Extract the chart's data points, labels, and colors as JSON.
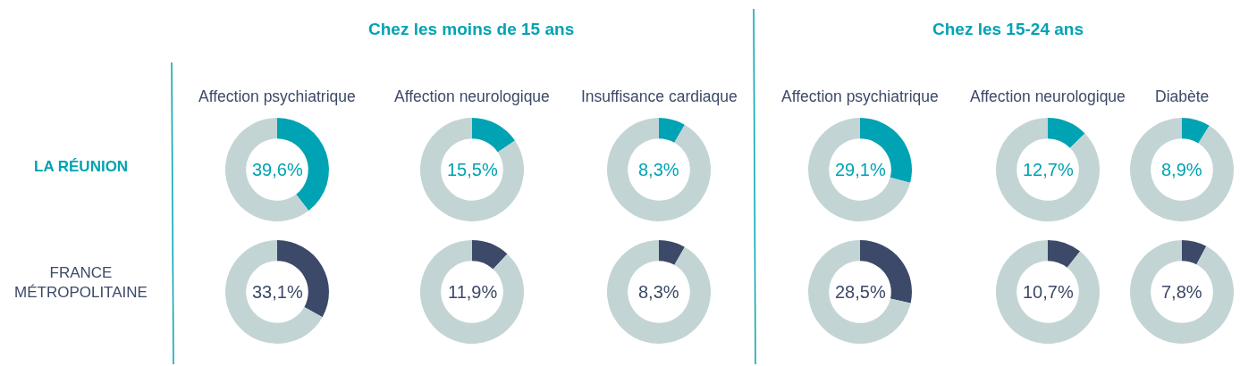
{
  "chart_data": [
    {
      "type": "other",
      "annotations": [
        "Chez les moins de 15 ans",
        "Chez les 15-24 ans",
        "LA RÉUNION",
        "FRANCE MÉTROPOLITAINE"
      ]
    },
    {
      "type": "donut",
      "title": "Affection psychiatrique",
      "categories": [
        null,
        null
      ],
      "values": [
        39.6,
        60.4
      ],
      "colors": [
        "#00a3b3",
        "#c3d4d4"
      ],
      "annotations": [
        "39,6%"
      ]
    },
    {
      "type": "donut",
      "title": "Affection neurologique",
      "categories": [
        null,
        null
      ],
      "values": [
        15.5,
        84.5
      ],
      "colors": [
        "#00a3b3",
        "#c3d4d4"
      ],
      "annotations": [
        "15,5%"
      ]
    },
    {
      "type": "donut",
      "title": "Insuffisance cardiaque",
      "categories": [
        null,
        null
      ],
      "values": [
        8.3,
        91.7
      ],
      "colors": [
        "#00a3b3",
        "#c3d4d4"
      ],
      "annotations": [
        "8,3%"
      ]
    },
    {
      "type": "donut",
      "title": "Affection psychiatrique",
      "categories": [
        null,
        null
      ],
      "values": [
        29.1,
        70.9
      ],
      "colors": [
        "#00a3b3",
        "#c3d4d4"
      ],
      "annotations": [
        "29,1%"
      ]
    },
    {
      "type": "donut",
      "title": "Affection neurologique",
      "categories": [
        null,
        null
      ],
      "values": [
        12.7,
        87.3
      ],
      "colors": [
        "#00a3b3",
        "#c3d4d4"
      ],
      "annotations": [
        "12,7%"
      ]
    },
    {
      "type": "donut",
      "title": "Diabète",
      "categories": [
        null,
        null
      ],
      "values": [
        8.9,
        91.1
      ],
      "colors": [
        "#00a3b3",
        "#c3d4d4"
      ],
      "annotations": [
        "8,9%"
      ]
    },
    {
      "type": "donut",
      "categories": [
        null,
        null
      ],
      "values": [
        33.1,
        66.9
      ],
      "colors": [
        "#3c4968",
        "#c3d4d4"
      ],
      "annotations": [
        "33,1%"
      ]
    },
    {
      "type": "donut",
      "categories": [
        null,
        null
      ],
      "values": [
        11.9,
        88.1
      ],
      "colors": [
        "#3c4968",
        "#c3d4d4"
      ],
      "annotations": [
        "11,9%"
      ]
    },
    {
      "type": "donut",
      "categories": [
        null,
        null
      ],
      "values": [
        8.3,
        91.7
      ],
      "colors": [
        "#3c4968",
        "#c3d4d4"
      ],
      "annotations": [
        "8,3%"
      ]
    },
    {
      "type": "donut",
      "categories": [
        null,
        null
      ],
      "values": [
        28.5,
        71.5
      ],
      "colors": [
        "#3c4968",
        "#c3d4d4"
      ],
      "annotations": [
        "28,5%"
      ]
    },
    {
      "type": "donut",
      "categories": [
        null,
        null
      ],
      "values": [
        10.7,
        89.3
      ],
      "colors": [
        "#3c4968",
        "#c3d4d4"
      ],
      "annotations": [
        "10,7%"
      ]
    },
    {
      "type": "donut",
      "categories": [
        null,
        null
      ],
      "values": [
        7.8,
        92.2
      ],
      "colors": [
        "#3c4968",
        "#c3d4d4"
      ],
      "annotations": [
        "7,8%"
      ]
    }
  ]
}
